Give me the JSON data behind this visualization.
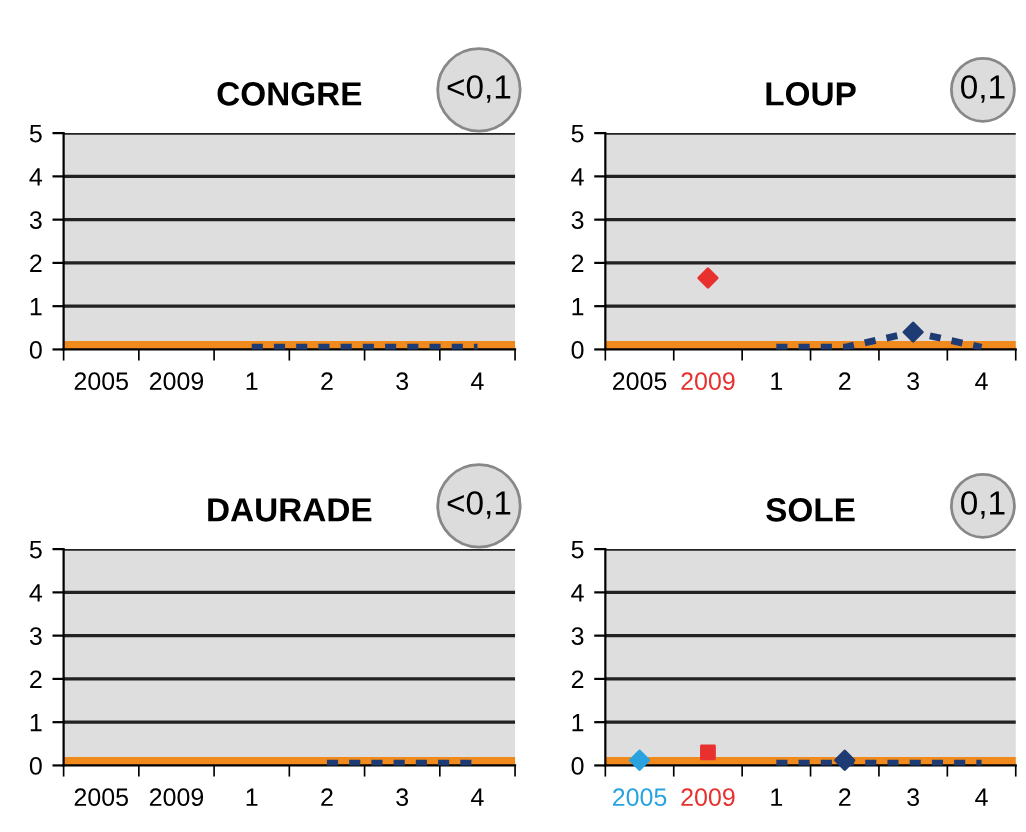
{
  "chart_data": [
    {
      "type": "line",
      "title": "CONGRE",
      "categories": [
        "2005",
        "2009",
        "1",
        "2",
        "3",
        "4"
      ],
      "ylim": [
        0,
        5
      ],
      "yticks": [
        0,
        1,
        2,
        3,
        4,
        5
      ],
      "grid": "y",
      "annotations": [
        "<0,1"
      ],
      "ref_lines": [
        {
          "axis": "y",
          "value": 0.1,
          "color": "#f08a1c"
        }
      ],
      "series": [
        {
          "color": "#1f3b73",
          "line_style": "dashed",
          "values": [
            null,
            null,
            0.05,
            0.05,
            0.05,
            0.05
          ]
        }
      ]
    },
    {
      "type": "line",
      "title": "LOUP",
      "categories": [
        "2005",
        "2009",
        "1",
        "2",
        "3",
        "4"
      ],
      "ylim": [
        0,
        5
      ],
      "yticks": [
        0,
        1,
        2,
        3,
        4,
        5
      ],
      "grid": "y",
      "annotations": [
        "0,1"
      ],
      "ref_lines": [
        {
          "axis": "y",
          "value": 0.1,
          "color": "#f08a1c"
        }
      ],
      "series": [
        {
          "color": "#1f3b73",
          "line_style": "dashed",
          "values": [
            null,
            null,
            0.05,
            0.05,
            0.4,
            0.05
          ]
        },
        {
          "type": "scatter",
          "color": "#1f3b73",
          "marker": "diamond",
          "values": [
            null,
            null,
            null,
            null,
            0.4,
            null
          ]
        },
        {
          "type": "scatter",
          "color": "#e8312f",
          "marker": "diamond",
          "values": [
            null,
            1.65,
            null,
            null,
            null,
            null
          ]
        }
      ]
    },
    {
      "type": "line",
      "title": "DAURADE",
      "categories": [
        "2005",
        "2009",
        "1",
        "2",
        "3",
        "4"
      ],
      "ylim": [
        0,
        5
      ],
      "yticks": [
        0,
        1,
        2,
        3,
        4,
        5
      ],
      "grid": "y",
      "annotations": [
        "<0,1"
      ],
      "ref_lines": [
        {
          "axis": "y",
          "value": 0.1,
          "color": "#f08a1c"
        }
      ],
      "series": [
        {
          "color": "#1f3b73",
          "line_style": "dashed",
          "values": [
            null,
            null,
            null,
            0.05,
            0.05,
            0.05
          ]
        }
      ]
    },
    {
      "type": "line",
      "title": "SOLE",
      "categories": [
        "2005",
        "2009",
        "1",
        "2",
        "3",
        "4"
      ],
      "ylim": [
        0,
        5
      ],
      "yticks": [
        0,
        1,
        2,
        3,
        4,
        5
      ],
      "grid": "y",
      "annotations": [
        "0,1"
      ],
      "ref_lines": [
        {
          "axis": "y",
          "value": 0.1,
          "color": "#f08a1c"
        }
      ],
      "series": [
        {
          "color": "#1f3b73",
          "line_style": "dashed",
          "values": [
            null,
            null,
            0.05,
            0.05,
            0.05,
            0.05
          ]
        },
        {
          "type": "scatter",
          "color": "#1f3b73",
          "marker": "diamond",
          "values": [
            null,
            null,
            null,
            0.12,
            null,
            null
          ]
        },
        {
          "type": "scatter",
          "color": "#29a3e0",
          "marker": "diamond",
          "values": [
            0.12,
            null,
            null,
            null,
            null,
            null
          ]
        },
        {
          "type": "scatter",
          "color": "#e8312f",
          "marker": "square",
          "values": [
            null,
            0.3,
            null,
            null,
            null,
            null
          ]
        }
      ]
    }
  ]
}
